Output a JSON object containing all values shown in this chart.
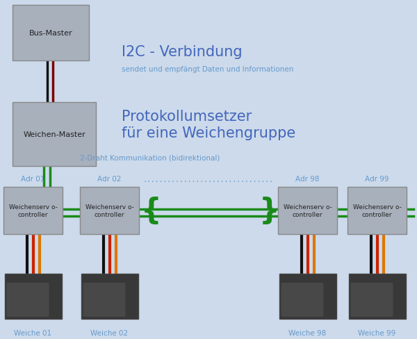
{
  "background_color": "#ccdaeb",
  "bg_box_color": "#a8b0bc",
  "box_border_color": "#888888",
  "text_color_dark": "#222222",
  "text_color_blue_dark": "#4466bb",
  "text_color_blue_light": "#6699cc",
  "green_line_color": "#1a8a1a",
  "black_wire": "#111111",
  "dark_red_wire": "#7a0000",
  "red_wire": "#cc2200",
  "orange_wire": "#dd7700",
  "i2c_title": "I2C - Verbindung",
  "i2c_subtitle": "sendet und empfängt Daten und Informationen",
  "proto_line1": "Protokollumsetzer",
  "proto_line2": "für eine Weichengruppe",
  "comm_text": "2-Draht Kommunikation (bidirektional)",
  "adr_labels": [
    "Adr 01",
    "Adr 02",
    "Adr 98",
    "Adr 99"
  ],
  "weiche_labels": [
    "Weiche 01",
    "Weiche 02",
    "Weiche 98",
    "Weiche 99"
  ],
  "servo_label": "Weichenserv o-\ncontroller",
  "bus_master_label": "Bus-Master",
  "weichen_master_label": "Weichen-Master",
  "dots_text": "................................"
}
